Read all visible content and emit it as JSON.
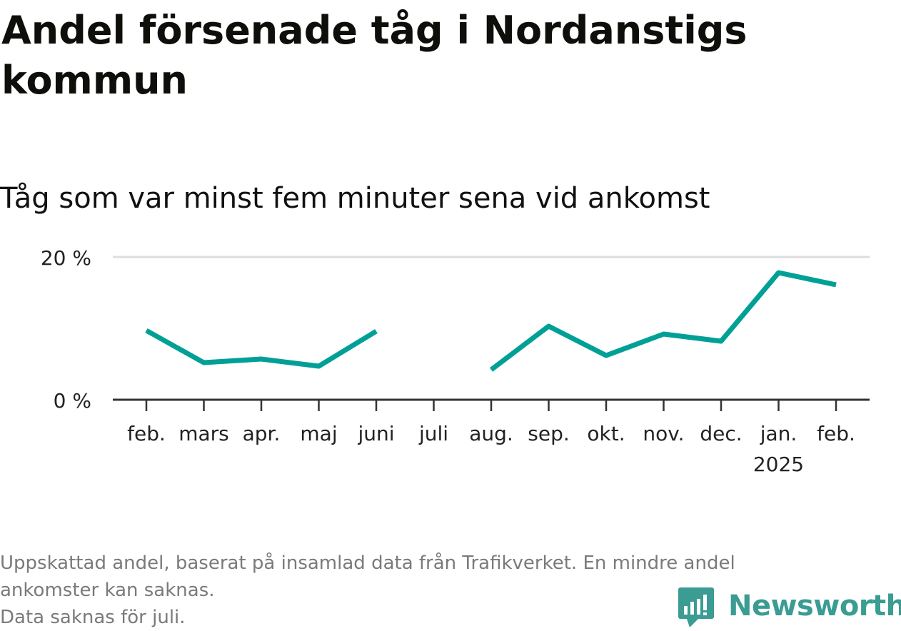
{
  "title": "Andel försenade tåg i Nordanstigs kommun",
  "subtitle": "Tåg som var minst fem minuter sena vid ankomst",
  "footnote": {
    "line1": "Uppskattad andel, baserat på insamlad data från Trafikverket. En mindre andel",
    "line2": "ankomster kan saknas.",
    "line3": "Data saknas för juli."
  },
  "brand": {
    "name": "Newsworthy",
    "icon": "bar-chart-speech-icon",
    "color": "#3a9c92"
  },
  "chart_data": {
    "type": "line",
    "title": "Andel försenade tåg i Nordanstigs kommun",
    "subtitle": "Tåg som var minst fem minuter sena vid ankomst",
    "categories": [
      "feb.",
      "mars",
      "apr.",
      "maj",
      "juni",
      "juli",
      "aug.",
      "sep.",
      "okt.",
      "nov.",
      "dec.",
      "jan.",
      "feb."
    ],
    "year_labels": [
      "",
      "",
      "",
      "",
      "",
      "",
      "",
      "",
      "",
      "",
      "",
      "2025",
      ""
    ],
    "series": [
      {
        "values": [
          9.7,
          5.2,
          5.7,
          4.7,
          9.6,
          null,
          4.2,
          10.3,
          6.2,
          9.2,
          8.2,
          17.8,
          16.1
        ],
        "color": "#00a096"
      }
    ],
    "ylim": [
      0,
      20
    ],
    "yticks": [
      0,
      20
    ],
    "ytick_labels": [
      "0 %",
      "20 %"
    ],
    "grid": true,
    "legend": "none"
  }
}
